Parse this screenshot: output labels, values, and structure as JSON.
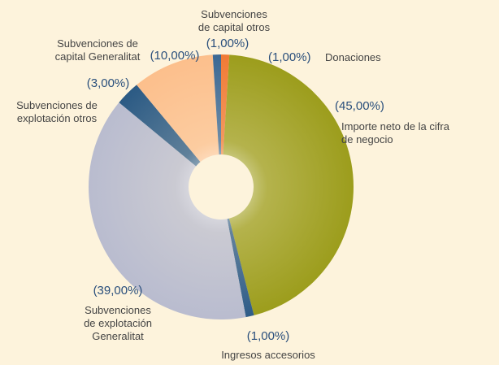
{
  "chart_data": {
    "type": "donut",
    "categories": [
      "Donaciones",
      "Importe neto de la cifra\nde negocio",
      "Ingresos accesorios",
      "Subvenciones\nde explotación\nGeneralitat",
      "Subvenciones de\nexplotación otros",
      "Subvenciones de\ncapital Generalitat",
      "Subvenciones\nde capital otros"
    ],
    "values": [
      1,
      45,
      1,
      39,
      3,
      10,
      1
    ],
    "value_labels": [
      "(1,00%)",
      "(45,00%)",
      "(1,00%)",
      "(39,00%)",
      "(3,00%)",
      "(10,00%)",
      "(1,00%)"
    ],
    "colors": [
      "#f07a35",
      "#9c9d1c",
      "#2f5c88",
      "#b9bccf",
      "#2b5a84",
      "#fcbf8c",
      "#3b6894"
    ]
  }
}
